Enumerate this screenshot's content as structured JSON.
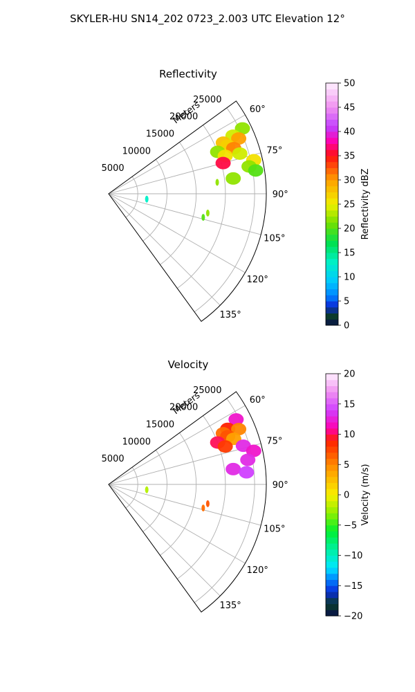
{
  "title": "SKYLER-HU  SN14_202  0723_2.003 UTC Elevation 12°",
  "chart_data": [
    {
      "type": "polar-sector",
      "title": "Reflectivity",
      "range_label": "Meters",
      "theta_range_deg": [
        54,
        144
      ],
      "r_max_m": 27000,
      "radial_ticks": [
        5000,
        10000,
        15000,
        20000,
        25000
      ],
      "radial_tick_labels": [
        "5000",
        "10000",
        "15000",
        "20000",
        "25000"
      ],
      "angle_ticks_deg": [
        60,
        75,
        90,
        105,
        120,
        135
      ],
      "angle_tick_labels": [
        "60°",
        "75°",
        "90°",
        "105°",
        "120°",
        "135°"
      ],
      "colorbar": {
        "label": "Reflectivity dBZ",
        "range": [
          0,
          50
        ],
        "ticks": [
          0,
          5,
          10,
          15,
          20,
          25,
          30,
          35,
          40,
          45,
          50
        ],
        "tick_labels": [
          "0",
          "5",
          "10",
          "15",
          "20",
          "25",
          "30",
          "35",
          "40",
          "45",
          "50"
        ],
        "color_stops": [
          {
            "v": 0,
            "c": "#08104a"
          },
          {
            "v": 2,
            "c": "#0b3d2a"
          },
          {
            "v": 4,
            "c": "#0a2ad8"
          },
          {
            "v": 6,
            "c": "#0080ff"
          },
          {
            "v": 9,
            "c": "#00c8ff"
          },
          {
            "v": 13,
            "c": "#00f0c8"
          },
          {
            "v": 17,
            "c": "#00e050"
          },
          {
            "v": 21,
            "c": "#70e000"
          },
          {
            "v": 25,
            "c": "#f0f000"
          },
          {
            "v": 30,
            "c": "#ffa000"
          },
          {
            "v": 35,
            "c": "#ff1010"
          },
          {
            "v": 38,
            "c": "#ff00b0"
          },
          {
            "v": 41,
            "c": "#c040ff"
          },
          {
            "v": 45,
            "c": "#f090f0"
          },
          {
            "v": 50,
            "c": "#fff0ff"
          }
        ]
      },
      "echoes": [
        {
          "az": 64,
          "r": 25500,
          "value": 22
        },
        {
          "az": 65,
          "r": 23500,
          "value": 24
        },
        {
          "az": 66,
          "r": 21500,
          "value": 28
        },
        {
          "az": 67,
          "r": 24200,
          "value": 30
        },
        {
          "az": 68,
          "r": 22000,
          "value": 27
        },
        {
          "az": 69,
          "r": 20000,
          "value": 22
        },
        {
          "az": 70,
          "r": 22800,
          "value": 31
        },
        {
          "az": 72,
          "r": 21000,
          "value": 26
        },
        {
          "az": 73,
          "r": 23500,
          "value": 24
        },
        {
          "az": 75,
          "r": 20300,
          "value": 36
        },
        {
          "az": 77,
          "r": 25500,
          "value": 26
        },
        {
          "az": 79,
          "r": 24500,
          "value": 22
        },
        {
          "az": 81,
          "r": 25500,
          "value": 20
        },
        {
          "az": 83,
          "r": 21500,
          "value": 22
        },
        {
          "az": 84,
          "r": 18700,
          "value": 22
        },
        {
          "az": 101,
          "r": 17300,
          "value": 22
        },
        {
          "az": 104,
          "r": 16700,
          "value": 20
        },
        {
          "az": 98,
          "r": 6600,
          "value": 13
        }
      ]
    },
    {
      "type": "polar-sector",
      "title": "Velocity",
      "range_label": "Meters",
      "theta_range_deg": [
        54,
        144
      ],
      "r_max_m": 27000,
      "radial_ticks": [
        5000,
        10000,
        15000,
        20000,
        25000
      ],
      "radial_tick_labels": [
        "5000",
        "10000",
        "15000",
        "20000",
        "25000"
      ],
      "angle_ticks_deg": [
        60,
        75,
        90,
        105,
        120,
        135
      ],
      "angle_tick_labels": [
        "60°",
        "75°",
        "90°",
        "105°",
        "120°",
        "135°"
      ],
      "colorbar": {
        "label": "Velocity (m/s)",
        "range": [
          -20,
          20
        ],
        "ticks": [
          -20,
          -15,
          -10,
          -5,
          0,
          5,
          10,
          15,
          20
        ],
        "tick_labels": [
          "−20",
          "−15",
          "−10",
          "−5",
          "0",
          "5",
          "10",
          "15",
          "20"
        ],
        "color_stops": [
          {
            "v": -20,
            "c": "#08104a"
          },
          {
            "v": -18,
            "c": "#0b3d2a"
          },
          {
            "v": -16,
            "c": "#0a2ad8"
          },
          {
            "v": -14,
            "c": "#0080ff"
          },
          {
            "v": -12,
            "c": "#00e8ff"
          },
          {
            "v": -9,
            "c": "#00f0a0"
          },
          {
            "v": -6,
            "c": "#00f030"
          },
          {
            "v": -3,
            "c": "#90f000"
          },
          {
            "v": 0,
            "c": "#f8f000"
          },
          {
            "v": 4,
            "c": "#ffa000"
          },
          {
            "v": 9,
            "c": "#ff2000"
          },
          {
            "v": 11,
            "c": "#ff00b0"
          },
          {
            "v": 14,
            "c": "#d040ff"
          },
          {
            "v": 17,
            "c": "#f090f0"
          },
          {
            "v": 20,
            "c": "#fff0ff"
          }
        ]
      },
      "echoes": [
        {
          "az": 63,
          "r": 24500,
          "value": 12
        },
        {
          "az": 65,
          "r": 22500,
          "value": 9
        },
        {
          "az": 66,
          "r": 21500,
          "value": 6
        },
        {
          "az": 67,
          "r": 24200,
          "value": 5
        },
        {
          "az": 68,
          "r": 22000,
          "value": 7
        },
        {
          "az": 69,
          "r": 20000,
          "value": 10
        },
        {
          "az": 70,
          "r": 22800,
          "value": 4
        },
        {
          "az": 72,
          "r": 21000,
          "value": 8
        },
        {
          "az": 74,
          "r": 24000,
          "value": 13
        },
        {
          "az": 77,
          "r": 25500,
          "value": 12
        },
        {
          "az": 80,
          "r": 24200,
          "value": 13
        },
        {
          "az": 83,
          "r": 21500,
          "value": 13
        },
        {
          "az": 85,
          "r": 23700,
          "value": 14
        },
        {
          "az": 101,
          "r": 17300,
          "value": 7
        },
        {
          "az": 104,
          "r": 16700,
          "value": 6
        },
        {
          "az": 98,
          "r": 6600,
          "value": -2
        }
      ]
    }
  ]
}
